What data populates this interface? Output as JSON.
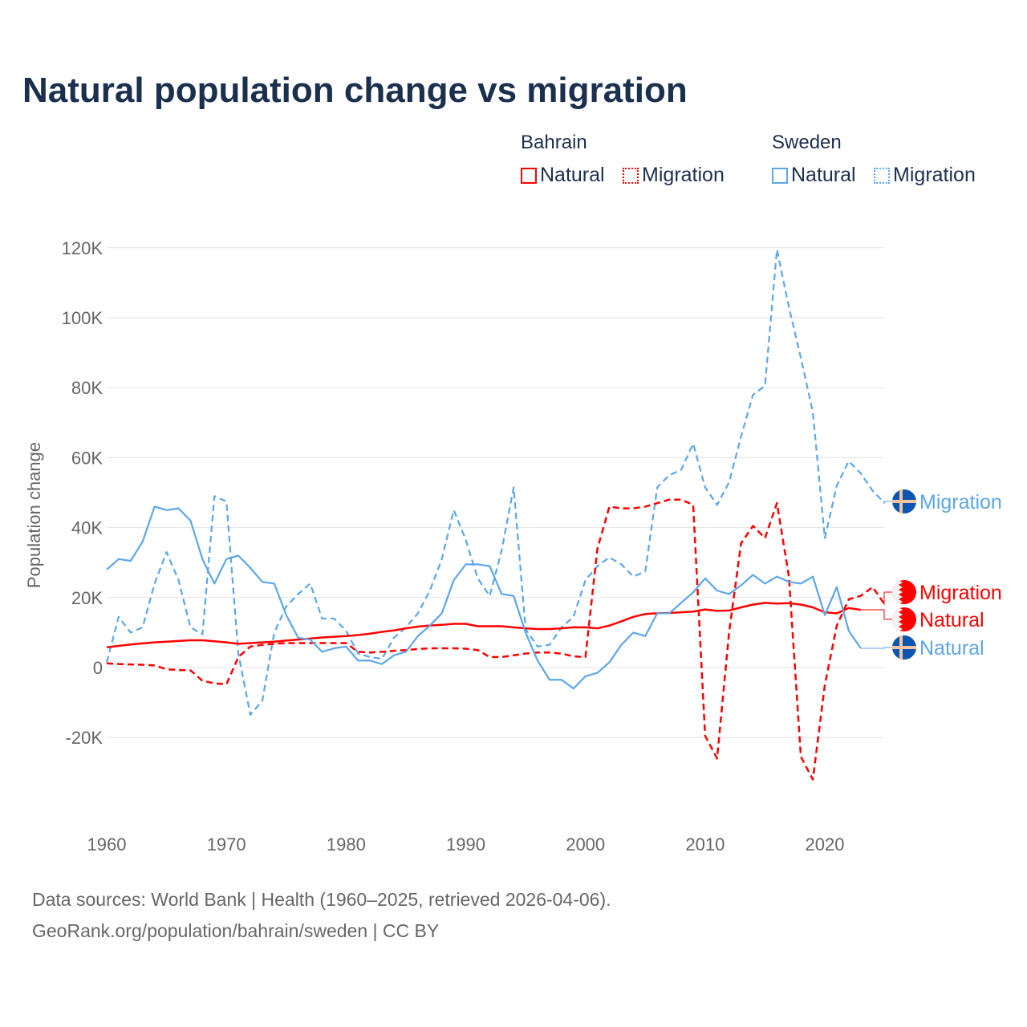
{
  "chart_data": {
    "type": "line",
    "title": "Natural population change vs migration",
    "ylabel": "Population change",
    "xlabel": "",
    "ylim": [
      -30000,
      120000
    ],
    "xlim": [
      1960,
      2025
    ],
    "yticks": [
      -20000,
      0,
      20000,
      40000,
      60000,
      80000,
      100000,
      120000
    ],
    "ytick_labels": [
      "-20K",
      "0",
      "20K",
      "40K",
      "60K",
      "80K",
      "100K",
      "120K"
    ],
    "xticks": [
      1960,
      1970,
      1980,
      1990,
      2000,
      2010,
      2020
    ],
    "xtick_labels": [
      "1960",
      "1970",
      "1980",
      "1990",
      "2000",
      "2010",
      "2020"
    ],
    "grid": true,
    "legend_position": "top-right",
    "legend_groups": [
      {
        "name": "Bahrain",
        "items": [
          "Natural",
          "Migration"
        ]
      },
      {
        "name": "Sweden",
        "items": [
          "Natural",
          "Migration"
        ]
      }
    ],
    "series": [
      {
        "name": "Sweden Migration",
        "country": "Sweden",
        "label": "Migration",
        "color": "#5ca6ea",
        "dash": true,
        "start_year": 1960,
        "values": [
          1500,
          14500,
          10000,
          11500,
          24000,
          33000,
          25000,
          11500,
          9500,
          49000,
          47500,
          4000,
          -13500,
          -9500,
          10000,
          17500,
          21000,
          24000,
          14000,
          14000,
          10500,
          4000,
          3000,
          2500,
          8500,
          11500,
          15500,
          22000,
          31000,
          45000,
          36500,
          25500,
          20500,
          33500,
          51500,
          11000,
          6000,
          6500,
          11500,
          14500,
          25000,
          29000,
          31500,
          29500,
          26000,
          27500,
          51500,
          55000,
          56500,
          64000,
          51500,
          46500,
          53000,
          66000,
          78000,
          80500,
          119500,
          103000,
          88500,
          73000,
          37000,
          52000,
          59000,
          55500,
          50500,
          47000
        ]
      },
      {
        "name": "Bahrain Migration",
        "country": "Bahrain",
        "label": "Migration",
        "color": "#ff0000",
        "dash": true,
        "start_year": 1960,
        "values": [
          1200,
          1000,
          900,
          800,
          600,
          -500,
          -700,
          -800,
          -3800,
          -4500,
          -4800,
          3000,
          6000,
          6500,
          6800,
          7000,
          7000,
          7000,
          7000,
          7000,
          7000,
          4500,
          4300,
          4500,
          4800,
          5000,
          5300,
          5500,
          5500,
          5500,
          5400,
          5000,
          3000,
          3000,
          3500,
          4000,
          4300,
          4300,
          4000,
          3200,
          3000,
          34000,
          46000,
          45500,
          45500,
          46000,
          47000,
          48000,
          48000,
          46500,
          -19500,
          -26000,
          10000,
          35500,
          40500,
          37000,
          47000,
          26000,
          -25500,
          -32000,
          -5000,
          12000,
          19500,
          20500,
          23000,
          18000
        ]
      },
      {
        "name": "Bahrain Natural",
        "country": "Bahrain",
        "label": "Natural",
        "color": "#ff0000",
        "dash": false,
        "start_year": 1960,
        "values": [
          5800,
          6200,
          6600,
          6900,
          7200,
          7400,
          7600,
          7800,
          7800,
          7500,
          7200,
          6800,
          7000,
          7200,
          7400,
          7700,
          8000,
          8300,
          8600,
          8800,
          9000,
          9300,
          9700,
          10200,
          10600,
          11200,
          11700,
          12000,
          12200,
          12500,
          12500,
          11800,
          11800,
          11800,
          11500,
          11200,
          11000,
          11000,
          11200,
          11500,
          11500,
          11200,
          12000,
          13200,
          14500,
          15300,
          15500,
          15600,
          15800,
          16000,
          16600,
          16200,
          16300,
          17200,
          18000,
          18500,
          18300,
          18400,
          18000,
          17200,
          15800,
          15500,
          17000,
          16500
        ]
      },
      {
        "name": "Sweden Natural",
        "country": "Sweden",
        "label": "Natural",
        "color": "#5ca6ea",
        "dash": false,
        "start_year": 1960,
        "values": [
          28000,
          31000,
          30500,
          36000,
          46000,
          45000,
          45500,
          42000,
          31000,
          24000,
          31000,
          32000,
          28500,
          24500,
          24000,
          15000,
          8500,
          8000,
          4500,
          5500,
          6000,
          2000,
          2000,
          1000,
          3500,
          4500,
          9000,
          12000,
          15500,
          25000,
          29500,
          29500,
          29000,
          21000,
          20500,
          10000,
          2000,
          -3500,
          -3500,
          -6000,
          -2500,
          -1500,
          1500,
          6500,
          10000,
          9000,
          15500,
          15500,
          18500,
          21500,
          25500,
          22000,
          21000,
          23500,
          26500,
          24000,
          26000,
          24500,
          24000,
          26000,
          15000,
          23000,
          10500,
          5500
        ]
      }
    ],
    "end_labels": [
      {
        "series": "Sweden Migration",
        "text": "Migration"
      },
      {
        "series": "Bahrain Migration",
        "text": "Migration"
      },
      {
        "series": "Bahrain Natural",
        "text": "Natural"
      },
      {
        "series": "Sweden Natural",
        "text": "Natural"
      }
    ]
  },
  "legend": {
    "bahrain": {
      "group": "Bahrain",
      "natural": "Natural",
      "migration": "Migration",
      "color": "#ff0000"
    },
    "sweden": {
      "group": "Sweden",
      "natural": "Natural",
      "migration": "Migration",
      "color": "#5ca6ea"
    }
  },
  "footer": {
    "sources": "Data sources: World Bank | Health (1960–2025, retrieved 2026-04-06).",
    "credit": "GeoRank.org/population/bahrain/sweden | CC BY"
  }
}
